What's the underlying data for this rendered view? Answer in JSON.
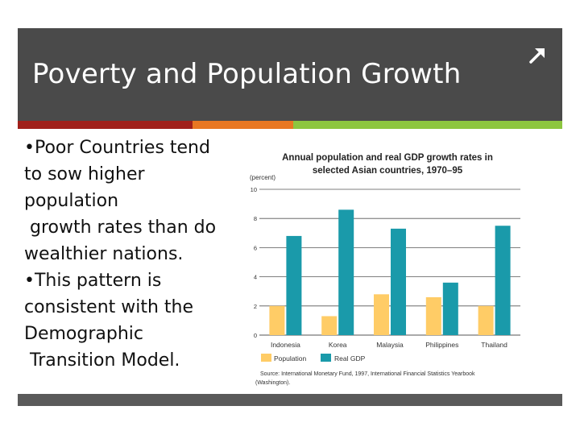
{
  "slide": {
    "title": "Poverty and Population Growth",
    "bullets": [
      [
        "•Poor Countries tend",
        "to sow higher",
        "population",
        " growth rates than do",
        "wealthier nations."
      ],
      [
        "•This pattern is",
        "consistent with the",
        "Demographic",
        " Transition Model."
      ]
    ],
    "colors": {
      "title_bar": "#4a4a4a",
      "stripe_red": "#a0201a",
      "stripe_orange": "#e87722",
      "stripe_green": "#8dc63f"
    },
    "corner_icon": "arrow-up-right-icon"
  },
  "chart_data": {
    "type": "bar",
    "title": [
      "Annual population and real GDP growth rates in",
      "selected Asian countries, 1970–95"
    ],
    "ylabel": "(percent)",
    "yticks": [
      "10",
      "8",
      "6",
      "4",
      "2",
      "0"
    ],
    "ylim": [
      0,
      10
    ],
    "categories": [
      "Indonesia",
      "Korea",
      "Malaysia",
      "Philippines",
      "Thailand"
    ],
    "series": [
      {
        "name": "Population",
        "color": "#ffcc66",
        "values": [
          2.0,
          1.3,
          2.8,
          2.6,
          2.0
        ]
      },
      {
        "name": "Real GDP",
        "color": "#1a9aaa",
        "values": [
          6.8,
          8.6,
          7.3,
          3.6,
          7.5
        ]
      }
    ],
    "source": [
      "Source: International Monetary Fund, 1997, International Financial Statistics Yearbook",
      "(Washington)."
    ]
  }
}
